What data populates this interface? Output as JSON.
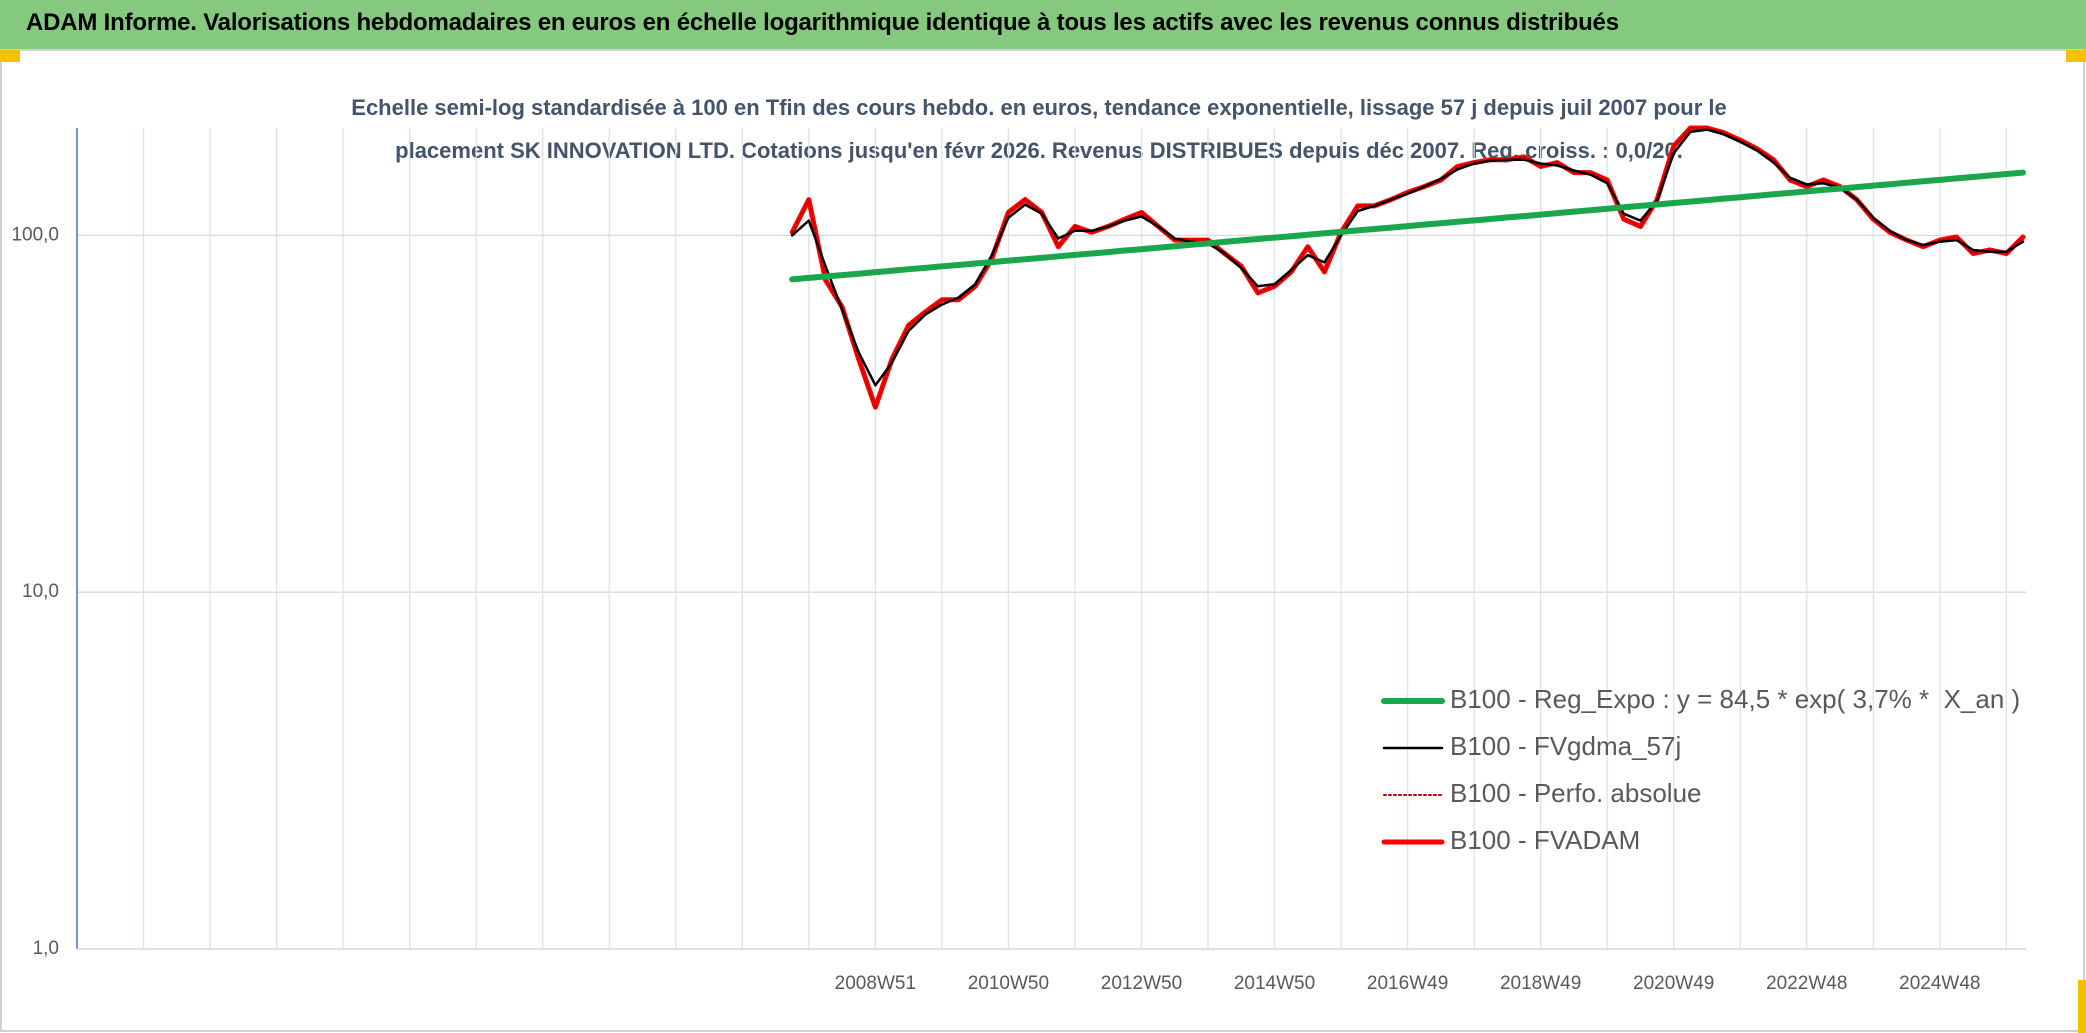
{
  "chart_data": {
    "type": "line",
    "title": "ADAM Informe. Valorisations hebdomadaires en euros en échelle logarithmique identique à tous les actifs avec les revenus connus distribués",
    "subtitle": "Echelle semi-log standardisée à 100 en Tfin des cours hebdo. en euros, tendance exponentielle, lissage 57 j depuis juil 2007 pour le placement SK INNOVATION LTD. Cotations jusqu'en févr 2026. Revenus DISTRIBUES depuis déc 2007. Reg. croiss. : 0,0/20.",
    "categories": [
      null,
      null,
      null,
      null,
      null,
      null,
      null,
      null,
      null,
      null,
      null,
      null,
      null,
      null,
      null,
      null,
      null,
      null,
      null,
      null,
      null,
      null,
      null,
      null,
      null,
      null,
      null,
      null,
      null,
      null,
      null,
      null,
      null,
      null,
      null,
      null,
      null,
      null,
      null,
      null,
      null,
      null,
      null,
      null,
      null,
      null,
      null,
      null,
      "2008W51",
      null,
      null,
      null,
      null,
      null,
      null,
      null,
      "2010W50",
      null,
      null,
      null,
      null,
      null,
      null,
      null,
      "2012W50",
      null,
      null,
      null,
      null,
      null,
      null,
      null,
      "2014W50",
      null,
      null,
      null,
      null,
      null,
      null,
      null,
      "2016W49",
      null,
      null,
      null,
      null,
      null,
      null,
      null,
      "2018W49",
      null,
      null,
      null,
      null,
      null,
      null,
      null,
      "2020W49",
      null,
      null,
      null,
      null,
      null,
      null,
      null,
      "2022W48",
      null,
      null,
      null,
      null,
      null,
      null,
      null,
      "2024W48",
      null,
      null,
      null,
      null,
      null
    ],
    "series": [
      {
        "name": "B100 - Reg_Expo : y = 84,5 * exp( 3,7% *  X_an )",
        "color": "#1aa64a",
        "style": "thick",
        "values": [
          null,
          null,
          null,
          null,
          null,
          null,
          null,
          null,
          null,
          null,
          null,
          null,
          null,
          null,
          null,
          null,
          null,
          null,
          null,
          null,
          null,
          null,
          null,
          null,
          null,
          null,
          null,
          null,
          null,
          null,
          null,
          null,
          null,
          null,
          null,
          null,
          null,
          null,
          null,
          null,
          null,
          null,
          null,
          75.3,
          76.0,
          76.7,
          77.4,
          78.1,
          78.9,
          79.6,
          80.4,
          81.1,
          81.9,
          82.6,
          83.4,
          84.2,
          85.0,
          85.7,
          86.5,
          87.4,
          88.2,
          89.0,
          89.8,
          90.7,
          91.5,
          92.4,
          93.2,
          94.1,
          95.0,
          95.9,
          96.8,
          97.7,
          98.6,
          99.5,
          100.4,
          101.4,
          102.3,
          103.3,
          104.2,
          105.2,
          106.2,
          107.2,
          108.2,
          109.2,
          110.2,
          111.2,
          112.3,
          113.3,
          114.4,
          115.5,
          116.6,
          117.6,
          118.7,
          119.9,
          121.0,
          122.1,
          123.3,
          124.4,
          125.6,
          126.8,
          128.0,
          129.2,
          130.4,
          131.6,
          132.8,
          134.1,
          135.3,
          136.6,
          137.9,
          139.2,
          140.5,
          141.8,
          143.1,
          144.5,
          145.8,
          147.2,
          148.6,
          150.0
        ]
      },
      {
        "name": "B100 - FVgdma_57j",
        "color": "#000000",
        "style": "thin",
        "values": [
          null,
          null,
          null,
          null,
          null,
          null,
          null,
          null,
          null,
          null,
          null,
          null,
          null,
          null,
          null,
          null,
          null,
          null,
          null,
          null,
          null,
          null,
          null,
          null,
          null,
          null,
          null,
          null,
          null,
          null,
          null,
          null,
          null,
          null,
          null,
          null,
          null,
          null,
          null,
          null,
          null,
          null,
          null,
          100,
          110,
          82,
          62,
          47,
          38,
          44,
          54,
          60,
          64,
          67,
          73,
          88,
          112,
          122,
          115,
          98,
          103,
          103,
          106,
          110,
          113,
          106,
          98,
          96,
          95,
          89,
          81,
          72,
          73,
          80,
          88,
          84,
          100,
          117,
          121,
          126,
          131,
          137,
          144,
          153,
          159,
          162,
          163,
          163,
          159,
          157,
          152,
          148,
          140,
          115,
          110,
          125,
          170,
          195,
          198,
          192,
          183,
          173,
          160,
          145,
          139,
          140,
          136,
          126,
          112,
          103,
          97,
          94,
          96,
          97,
          91,
          90,
          90,
          96
        ]
      },
      {
        "name": "B100 - Perfo. absolue",
        "color": "#c00000",
        "style": "dotted",
        "values": [
          null,
          null,
          null,
          null,
          null,
          null,
          null,
          null,
          null,
          null,
          null,
          null,
          null,
          null,
          null,
          null,
          null,
          null,
          null,
          null,
          null,
          null,
          null,
          null,
          null,
          null,
          null,
          null,
          null,
          null,
          null,
          null,
          null,
          null,
          null,
          null,
          null,
          null,
          null,
          null,
          null,
          null,
          null,
          102,
          126,
          75,
          63,
          45,
          33,
          45,
          56,
          61,
          66,
          66,
          72,
          86,
          116,
          126,
          116,
          93,
          106,
          102,
          106,
          111,
          116,
          106,
          97,
          97,
          97,
          89,
          82,
          69,
          72,
          79,
          93,
          79,
          102,
          121,
          121,
          126,
          132,
          137,
          143,
          156,
          160,
          163,
          163,
          166,
          156,
          160,
          150,
          150,
          143,
          111,
          106,
          126,
          178,
          200,
          200,
          194,
          185,
          175,
          163,
          143,
          137,
          143,
          137,
          126,
          111,
          102,
          97,
          93,
          97,
          99,
          89,
          91,
          89,
          99
        ]
      },
      {
        "name": "B100 - FVADAM",
        "color": "#ff0000",
        "style": "medium",
        "values": [
          null,
          null,
          null,
          null,
          null,
          null,
          null,
          null,
          null,
          null,
          null,
          null,
          null,
          null,
          null,
          null,
          null,
          null,
          null,
          null,
          null,
          null,
          null,
          null,
          null,
          null,
          null,
          null,
          null,
          null,
          null,
          null,
          null,
          null,
          null,
          null,
          null,
          null,
          null,
          null,
          null,
          null,
          null,
          102,
          126,
          75,
          63,
          45,
          33,
          45,
          56,
          61,
          66,
          66,
          72,
          86,
          116,
          126,
          116,
          93,
          106,
          102,
          106,
          111,
          116,
          106,
          97,
          97,
          97,
          89,
          82,
          69,
          72,
          79,
          93,
          79,
          102,
          121,
          121,
          126,
          132,
          137,
          143,
          156,
          160,
          163,
          163,
          166,
          156,
          160,
          150,
          150,
          143,
          111,
          106,
          126,
          178,
          200,
          200,
          194,
          185,
          175,
          163,
          143,
          137,
          143,
          137,
          126,
          111,
          102,
          97,
          93,
          97,
          99,
          89,
          91,
          89,
          99
        ]
      }
    ],
    "ylim": [
      1,
      200
    ],
    "yticks": [
      {
        "value": 1,
        "label": "1,0"
      },
      {
        "value": 10,
        "label": "10,0"
      },
      {
        "value": 100,
        "label": "100,0"
      }
    ],
    "log_scale": true,
    "grid": true,
    "legend": "right"
  }
}
